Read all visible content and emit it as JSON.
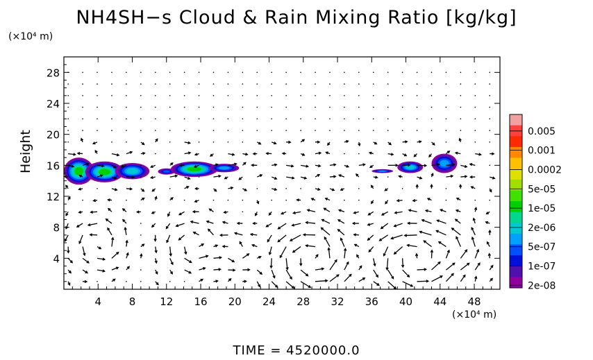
{
  "chart_data": {
    "type": "heatmap",
    "title": "NH4SH−s Cloud & Rain Mixing Ratio [kg/kg]",
    "ylabel": "Height",
    "x_unit": "(×10⁴ m)",
    "y_unit": "(×10⁴ m)",
    "xlim": [
      0,
      51
    ],
    "ylim": [
      0,
      30
    ],
    "xticks": [
      "4",
      "8",
      "12",
      "16",
      "20",
      "24",
      "28",
      "32",
      "36",
      "40",
      "44",
      "48"
    ],
    "yticks": [
      "4",
      "8",
      "12",
      "16",
      "20",
      "24",
      "28"
    ],
    "colorbar": {
      "labels": [
        "0.005",
        "0.001",
        "0.0002",
        "5e-05",
        "1e-05",
        "2e-06",
        "5e-07",
        "1e-07",
        "2e-08"
      ],
      "colors": [
        "#f2a0a0",
        "#ff4040",
        "#ff2a00",
        "#ff8800",
        "#ffc000",
        "#e0e000",
        "#a0e000",
        "#40e000",
        "#00d000",
        "#00d890",
        "#00c8d0",
        "#00a0ff",
        "#0050ff",
        "#0010d8",
        "#5010b0",
        "#9000a0"
      ]
    },
    "cloud_regions": [
      {
        "x": [
          0,
          10
        ],
        "y": [
          13.5,
          17
        ],
        "peak": "5e-05"
      },
      {
        "x": [
          11,
          20.5
        ],
        "y": [
          14.5,
          16.5
        ],
        "peak": "5e-05"
      },
      {
        "x": [
          36,
          38.5
        ],
        "y": [
          15,
          15.5
        ],
        "peak": "5e-07"
      },
      {
        "x": [
          39,
          42
        ],
        "y": [
          15,
          16.5
        ],
        "peak": "2e-06"
      },
      {
        "x": [
          43,
          46
        ],
        "y": [
          15,
          17.5
        ],
        "peak": "5e-07"
      }
    ],
    "wind_vectors": "shown",
    "time_label": "TIME  =  4520000.0"
  }
}
